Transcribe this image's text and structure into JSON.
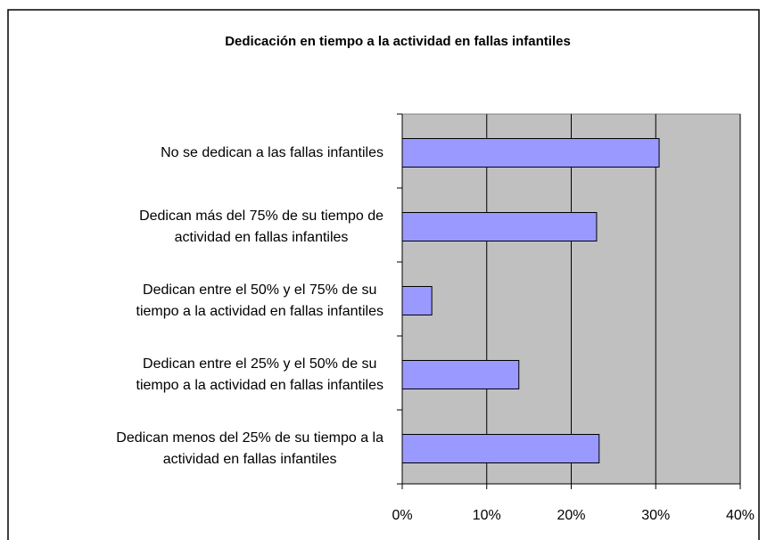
{
  "chart_data": {
    "type": "bar",
    "orientation": "horizontal",
    "title": "Dedicación en tiempo a la actividad en fallas infantiles",
    "categories": [
      "No se dedican a las fallas infantiles",
      "Dedican más del  75% de su tiempo de\nactividad en fallas infantiles",
      "Dedican entre el  50% y el 75% de su\ntiempo a la actividad en fallas infantiles",
      "Dedican entre el  25% y el 50% de su\ntiempo a la actividad en fallas infantiles",
      "Dedican menos del 25% de su tiempo a la\nactividad en fallas infantiles"
    ],
    "values": [
      30.4,
      23.0,
      3.5,
      13.8,
      23.3
    ],
    "color": "#9999ff",
    "xlim": [
      0,
      40
    ],
    "xticks": [
      {
        "value": 0,
        "label": "0%"
      },
      {
        "value": 10,
        "label": "10%"
      },
      {
        "value": 20,
        "label": "20%"
      },
      {
        "value": 30,
        "label": "30%"
      },
      {
        "value": 40,
        "label": "40%"
      }
    ],
    "grid": true
  }
}
